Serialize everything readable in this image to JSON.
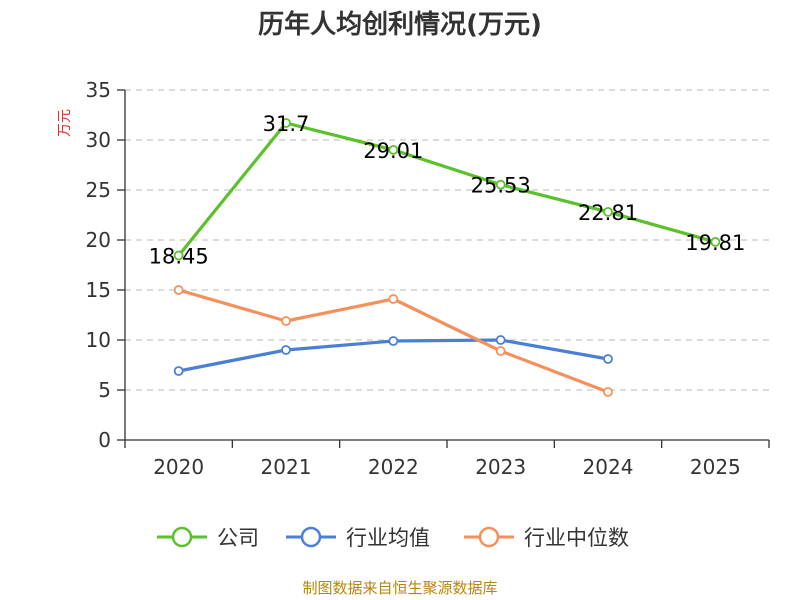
{
  "chart_data": {
    "type": "line",
    "title": "历年人均创利情况(万元)",
    "ylabel": "万元",
    "xlabel": "",
    "categories": [
      "2020",
      "2021",
      "2022",
      "2023",
      "2024",
      "2025"
    ],
    "ylim": [
      0,
      35
    ],
    "yticks": [
      0,
      5,
      10,
      15,
      20,
      25,
      30,
      35
    ],
    "grid": true,
    "legend_position": "bottom",
    "series": [
      {
        "name": "公司",
        "color": "#5ac12c",
        "values": [
          18.45,
          31.7,
          29.01,
          25.53,
          22.81,
          19.81
        ],
        "labels": [
          "18.45",
          "31.7",
          "29.01",
          "25.53",
          "22.81",
          "19.81"
        ]
      },
      {
        "name": "行业均值",
        "color": "#4a7fd6",
        "values": [
          6.9,
          9.0,
          9.9,
          10.0,
          8.1,
          null
        ]
      },
      {
        "name": "行业中位数",
        "color": "#f4915a",
        "values": [
          15.0,
          11.9,
          14.1,
          8.9,
          4.8,
          null
        ]
      }
    ]
  },
  "source": "制图数据来自恒生聚源数据库"
}
